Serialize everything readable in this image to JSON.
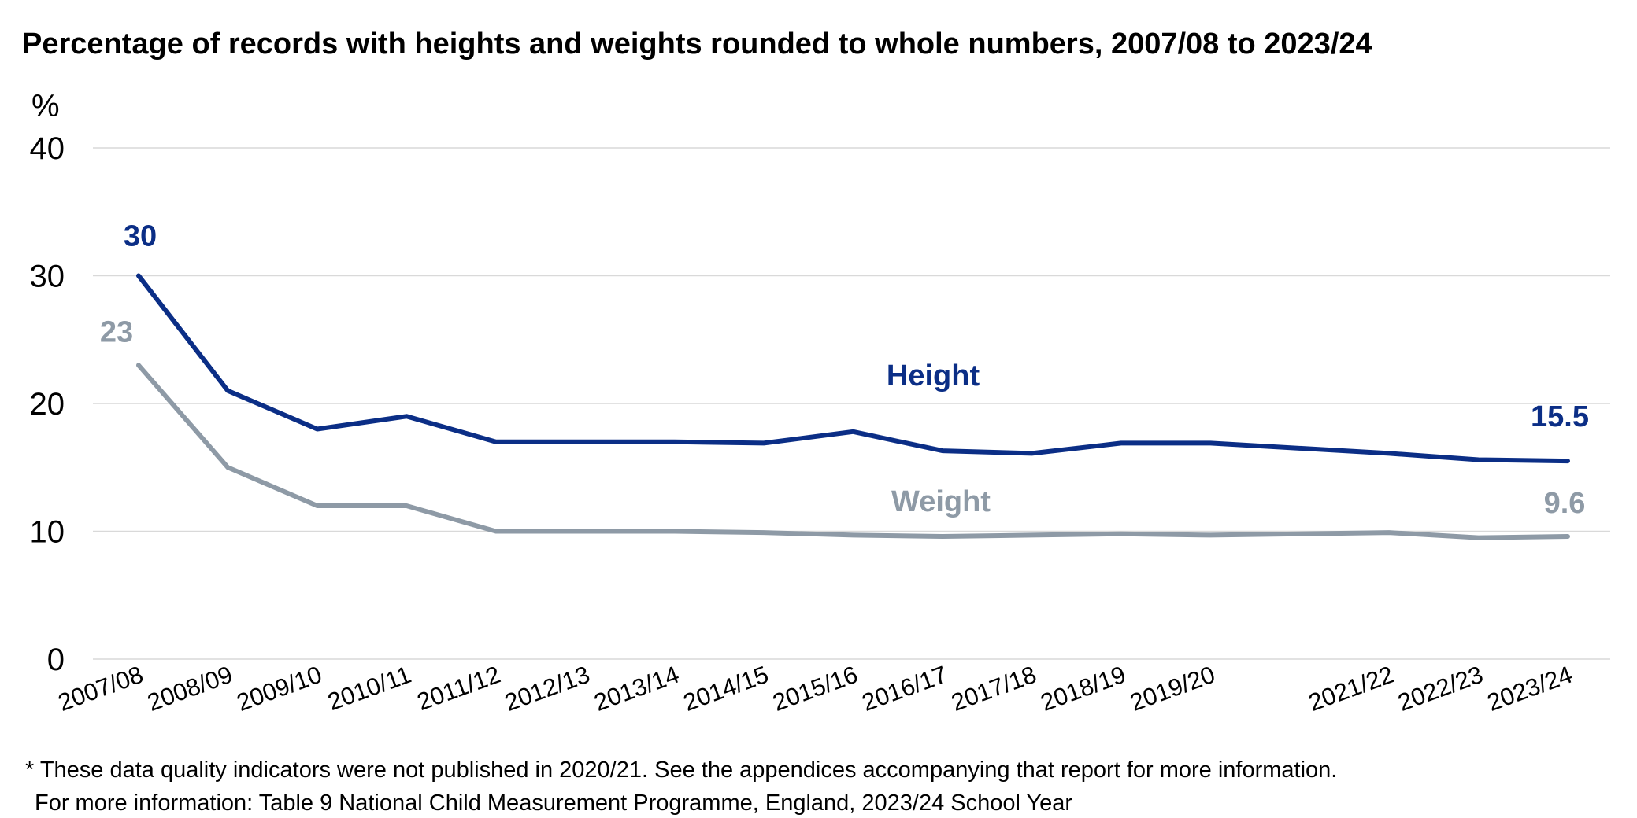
{
  "chart_data": {
    "type": "line",
    "title": "Percentage of records with heights and weights rounded to whole numbers, 2007/08 to 2023/24",
    "ylabel": "%",
    "ylim": [
      0,
      40
    ],
    "yticks": [
      0,
      10,
      20,
      30,
      40
    ],
    "grid": true,
    "legend": "inline labels",
    "categories": [
      "2007/08",
      "2008/09",
      "2009/10",
      "2010/11",
      "2011/12",
      "2012/13",
      "2013/14",
      "2014/15",
      "2015/16",
      "2016/17",
      "2017/18",
      "2018/19",
      "2019/20",
      "2020/21",
      "2021/22",
      "2022/23",
      "2023/24"
    ],
    "category_labels": [
      "2007/08",
      "2008/09",
      "2009/10",
      "2010/11",
      "2011/12",
      "2012/13",
      "2013/14",
      "2014/15",
      "2015/16",
      "2016/17",
      "2017/18",
      "2018/19",
      "2019/20",
      "",
      "2021/22",
      "2022/23",
      "2023/24"
    ],
    "series": [
      {
        "name": "Height",
        "color": "#0b2e86",
        "values": [
          30,
          21,
          18,
          19,
          17,
          17,
          17,
          16.9,
          17.8,
          16.3,
          16.1,
          16.9,
          16.9,
          null,
          16.1,
          15.6,
          15.5
        ],
        "data_labels": [
          {
            "index": 0,
            "text": "30"
          },
          {
            "index": 16,
            "text": "15.5"
          }
        ]
      },
      {
        "name": "Weight",
        "color": "#8e9aa6",
        "values": [
          23,
          15,
          12,
          12,
          10,
          10,
          10,
          9.9,
          9.7,
          9.6,
          9.7,
          9.8,
          9.7,
          null,
          9.9,
          9.5,
          9.6
        ],
        "data_labels": [
          {
            "index": 0,
            "text": "23"
          },
          {
            "index": 16,
            "text": "9.6"
          }
        ]
      }
    ],
    "footnotes": [
      "* These data quality indicators were not published in 2020/21. See the appendices accompanying that report for more information.",
      "For more information: Table 9 National Child Measurement Programme, England, 2023/24 School Year"
    ]
  }
}
